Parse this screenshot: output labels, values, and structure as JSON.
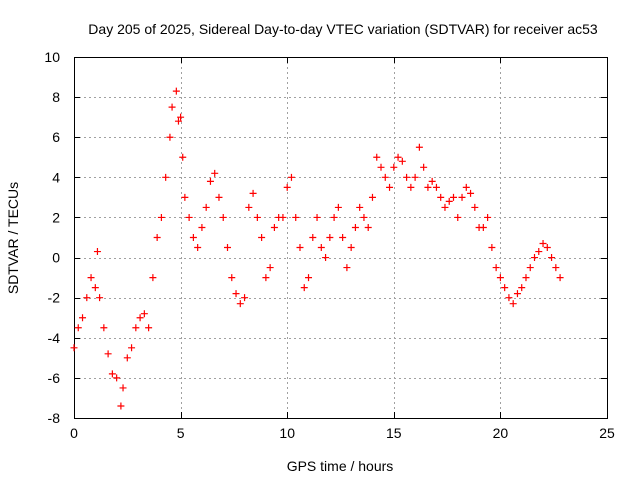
{
  "chart_data": {
    "type": "scatter",
    "title": "Day 205 of 2025, Sidereal Day-to-day VTEC variation (SDTVAR) for receiver ac53",
    "xlabel": "GPS time / hours",
    "ylabel": "SDTVAR / TECUs",
    "xlim": [
      0,
      25
    ],
    "ylim": [
      -8,
      10
    ],
    "x_ticks": [
      0,
      5,
      10,
      15,
      20,
      25
    ],
    "x_tick_labels": [
      "0",
      "5",
      "10",
      "15",
      "20",
      "25"
    ],
    "y_ticks": [
      -8,
      -6,
      -4,
      -2,
      0,
      2,
      4,
      6,
      8,
      10
    ],
    "y_tick_labels": [
      "-8",
      "-6",
      "-4",
      "-2",
      "0",
      "2",
      "4",
      "6",
      "8",
      "10"
    ],
    "grid": true,
    "marker": "plus",
    "color": "#ff0000",
    "series": [
      {
        "name": "SDTVAR",
        "x": [
          0.0,
          0.2,
          0.4,
          0.6,
          0.8,
          1.0,
          1.1,
          1.2,
          1.4,
          1.6,
          1.8,
          2.0,
          2.2,
          2.3,
          2.5,
          2.7,
          2.9,
          3.1,
          3.3,
          3.5,
          3.7,
          3.9,
          4.1,
          4.3,
          4.5,
          4.6,
          4.8,
          4.9,
          5.0,
          5.1,
          5.2,
          5.4,
          5.6,
          5.8,
          6.0,
          6.2,
          6.4,
          6.6,
          6.8,
          7.0,
          7.2,
          7.4,
          7.6,
          7.8,
          8.0,
          8.2,
          8.4,
          8.6,
          8.8,
          9.0,
          9.2,
          9.4,
          9.6,
          9.8,
          10.0,
          10.2,
          10.4,
          10.6,
          10.8,
          11.0,
          11.2,
          11.4,
          11.6,
          11.8,
          12.0,
          12.2,
          12.4,
          12.6,
          12.8,
          13.0,
          13.2,
          13.4,
          13.6,
          13.8,
          14.0,
          14.2,
          14.4,
          14.6,
          14.8,
          15.0,
          15.2,
          15.4,
          15.6,
          15.8,
          16.0,
          16.2,
          16.4,
          16.6,
          16.8,
          17.0,
          17.2,
          17.4,
          17.6,
          17.8,
          18.0,
          18.2,
          18.4,
          18.6,
          18.8,
          19.0,
          19.2,
          19.4,
          19.6,
          19.8,
          20.0,
          20.2,
          20.4,
          20.6,
          20.8,
          21.0,
          21.2,
          21.4,
          21.6,
          21.8,
          22.0,
          22.2,
          22.4,
          22.6,
          22.8
        ],
        "y": [
          -4.5,
          -3.5,
          -3.0,
          -2.0,
          -1.0,
          -1.5,
          0.3,
          -2.0,
          -3.5,
          -4.8,
          -5.8,
          -6.0,
          -7.4,
          -6.5,
          -5.0,
          -4.5,
          -3.5,
          -3.0,
          -2.8,
          -3.5,
          -1.0,
          1.0,
          2.0,
          4.0,
          6.0,
          7.5,
          8.3,
          6.8,
          7.0,
          5.0,
          3.0,
          2.0,
          1.0,
          0.5,
          1.5,
          2.5,
          3.8,
          4.2,
          3.0,
          2.0,
          0.5,
          -1.0,
          -1.8,
          -2.3,
          -2.0,
          2.5,
          3.2,
          2.0,
          1.0,
          -1.0,
          -0.5,
          1.5,
          2.0,
          2.0,
          3.5,
          4.0,
          2.0,
          0.5,
          -1.5,
          -1.0,
          1.0,
          2.0,
          0.5,
          0.0,
          1.0,
          2.0,
          2.5,
          1.0,
          -0.5,
          0.5,
          1.5,
          2.5,
          2.0,
          1.5,
          3.0,
          5.0,
          4.5,
          4.0,
          3.5,
          4.5,
          5.0,
          4.8,
          4.0,
          3.5,
          4.0,
          5.5,
          4.5,
          3.5,
          3.8,
          3.5,
          3.0,
          2.5,
          2.8,
          3.0,
          2.0,
          3.0,
          3.5,
          3.2,
          2.5,
          1.5,
          1.5,
          2.0,
          0.5,
          -0.5,
          -1.0,
          -1.5,
          -2.0,
          -2.3,
          -1.8,
          -1.5,
          -1.0,
          -0.5,
          0.0,
          0.3,
          0.7,
          0.5,
          0.0,
          -0.5,
          -1.0
        ]
      }
    ]
  }
}
